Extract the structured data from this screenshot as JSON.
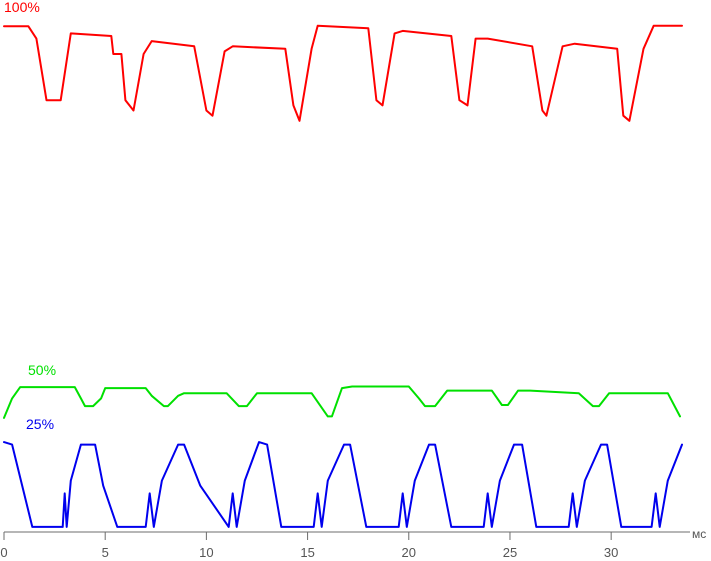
{
  "chart_data": {
    "type": "line",
    "title": "",
    "xlabel": "мс",
    "ylabel": "",
    "xlim": [
      0,
      33.5
    ],
    "ylim": [
      0,
      1
    ],
    "grid": false,
    "x_ticks": [
      0,
      5,
      10,
      15,
      20,
      25,
      30
    ],
    "x_tick_labels": [
      "0",
      "5",
      "10",
      "15",
      "20",
      "25",
      "30"
    ],
    "series": [
      {
        "name": "100%",
        "color": "#ff0000",
        "x": [
          0,
          1.2,
          1.6,
          2.1,
          2.8,
          3.3,
          5.3,
          5.4,
          5.8,
          6.0,
          6.4,
          6.9,
          7.3,
          9.4,
          10.0,
          10.3,
          10.9,
          11.3,
          13.9,
          14.3,
          14.6,
          15.2,
          15.5,
          18.0,
          18.4,
          18.7,
          19.3,
          19.7,
          22.1,
          22.5,
          22.9,
          23.3,
          23.9,
          26.1,
          26.6,
          26.8,
          27.6,
          28.2,
          30.3,
          30.6,
          30.9,
          31.6,
          32.1,
          33.5
        ],
        "y": [
          0.984,
          0.984,
          0.96,
          0.84,
          0.84,
          0.97,
          0.965,
          0.93,
          0.93,
          0.84,
          0.82,
          0.93,
          0.955,
          0.945,
          0.82,
          0.81,
          0.935,
          0.945,
          0.94,
          0.83,
          0.8,
          0.94,
          0.985,
          0.98,
          0.84,
          0.83,
          0.97,
          0.975,
          0.965,
          0.84,
          0.83,
          0.96,
          0.96,
          0.945,
          0.82,
          0.81,
          0.945,
          0.95,
          0.94,
          0.81,
          0.8,
          0.94,
          0.985,
          0.985
        ]
      },
      {
        "name": "50%",
        "color": "#00e000",
        "x": [
          0,
          0.4,
          0.8,
          3.5,
          3.8,
          4.0,
          4.4,
          4.8,
          5.0,
          7.0,
          7.3,
          7.9,
          8.1,
          8.6,
          8.9,
          11.0,
          11.6,
          12.0,
          12.5,
          15.2,
          16.0,
          16.2,
          16.7,
          17.2,
          20.0,
          20.5,
          20.8,
          21.3,
          21.9,
          24.1,
          24.6,
          24.9,
          25.4,
          26.0,
          28.4,
          29.1,
          29.4,
          29.9,
          30.5,
          32.8,
          33.4
        ],
        "y": [
          0.222,
          0.26,
          0.282,
          0.282,
          0.26,
          0.245,
          0.245,
          0.26,
          0.28,
          0.28,
          0.265,
          0.245,
          0.245,
          0.265,
          0.27,
          0.27,
          0.245,
          0.245,
          0.27,
          0.27,
          0.225,
          0.225,
          0.28,
          0.283,
          0.283,
          0.26,
          0.245,
          0.245,
          0.275,
          0.275,
          0.247,
          0.247,
          0.275,
          0.275,
          0.27,
          0.245,
          0.245,
          0.27,
          0.27,
          0.27,
          0.225
        ]
      },
      {
        "name": "25%",
        "color": "#0000ee",
        "x": [
          0,
          0.4,
          0.9,
          1.4,
          2.9,
          3.0,
          3.1,
          3.3,
          3.8,
          4.5,
          4.9,
          5.6,
          7.0,
          7.2,
          7.4,
          7.8,
          8.6,
          8.9,
          9.7,
          11.1,
          11.3,
          11.5,
          11.9,
          12.6,
          13.0,
          13.7,
          15.3,
          15.5,
          15.7,
          16.0,
          16.8,
          17.1,
          17.9,
          19.5,
          19.7,
          19.9,
          20.3,
          21.0,
          21.3,
          22.1,
          23.7,
          23.9,
          24.1,
          24.5,
          25.2,
          25.6,
          26.3,
          27.9,
          28.1,
          28.3,
          28.7,
          29.5,
          29.8,
          30.5,
          32.0,
          32.2,
          32.4,
          32.8,
          33.5
        ],
        "y": [
          0.175,
          0.17,
          0.09,
          0.01,
          0.01,
          0.075,
          0.01,
          0.1,
          0.17,
          0.17,
          0.09,
          0.01,
          0.01,
          0.075,
          0.01,
          0.1,
          0.17,
          0.17,
          0.09,
          0.01,
          0.075,
          0.01,
          0.1,
          0.175,
          0.17,
          0.01,
          0.01,
          0.075,
          0.01,
          0.1,
          0.17,
          0.17,
          0.01,
          0.01,
          0.075,
          0.01,
          0.1,
          0.17,
          0.17,
          0.01,
          0.01,
          0.075,
          0.01,
          0.1,
          0.17,
          0.17,
          0.01,
          0.01,
          0.075,
          0.01,
          0.1,
          0.17,
          0.17,
          0.01,
          0.01,
          0.075,
          0.01,
          0.1,
          0.17
        ]
      }
    ]
  }
}
